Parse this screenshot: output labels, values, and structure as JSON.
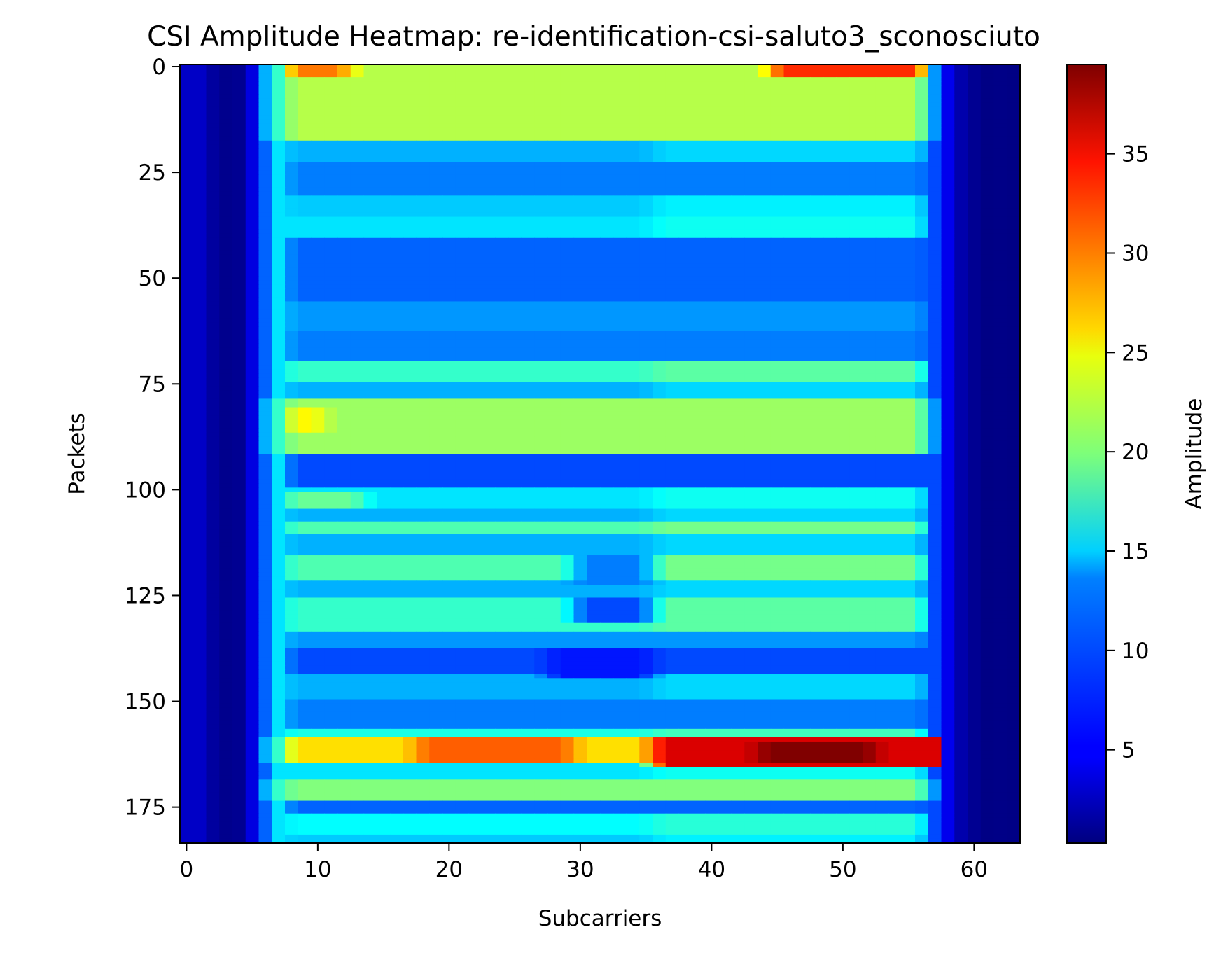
{
  "chart_data": {
    "type": "heatmap",
    "title": "CSI Amplitude Heatmap: re-identification-csi-saluto3_sconosciuto",
    "xlabel": "Subcarriers",
    "ylabel": "Packets",
    "x_range": [
      -0.5,
      63.5
    ],
    "y_range": [
      -0.5,
      183.5
    ],
    "y_inverted": true,
    "x_ticks": [
      0,
      10,
      20,
      30,
      40,
      50,
      60
    ],
    "y_ticks": [
      0,
      25,
      50,
      75,
      100,
      125,
      150,
      175
    ],
    "colormap": "jet",
    "colorbar": {
      "label": "Amplitude",
      "min": 0.3,
      "max": 39.5,
      "ticks": [
        5,
        10,
        15,
        20,
        25,
        30,
        35
      ]
    },
    "grid": false,
    "subcarrier_profile": [
      {
        "col": 0,
        "v": 3
      },
      {
        "col": 1,
        "v": 3
      },
      {
        "col": 2,
        "v": 1.5
      },
      {
        "col": 3,
        "v": 0.8
      },
      {
        "col": 4,
        "v": 1
      },
      {
        "col": 5,
        "v": 4
      },
      {
        "col": 6,
        "v": 9
      },
      {
        "col": 7,
        "v": 14
      },
      {
        "col": 57,
        "v": 8
      },
      {
        "col": 58,
        "v": 4.5
      },
      {
        "col": 59,
        "v": 2
      },
      {
        "col": 60,
        "v": 1
      },
      {
        "col": 61,
        "v": 0.5
      },
      {
        "col": 62,
        "v": 0.6
      },
      {
        "col": 63,
        "v": 0.5
      }
    ],
    "packet_bands": [
      {
        "rows": [
          0,
          2
        ],
        "value": 22
      },
      {
        "rows": [
          3,
          17
        ],
        "value": 22
      },
      {
        "rows": [
          18,
          22
        ],
        "value": 12
      },
      {
        "rows": [
          23,
          30
        ],
        "value": 10
      },
      {
        "rows": [
          31,
          35
        ],
        "value": 13
      },
      {
        "rows": [
          36,
          40
        ],
        "value": 14
      },
      {
        "rows": [
          41,
          55
        ],
        "value": 9
      },
      {
        "rows": [
          56,
          62
        ],
        "value": 11
      },
      {
        "rows": [
          63,
          69
        ],
        "value": 10
      },
      {
        "rows": [
          70,
          74
        ],
        "value": 17
      },
      {
        "rows": [
          75,
          78
        ],
        "value": 12
      },
      {
        "rows": [
          79,
          91
        ],
        "value": 21
      },
      {
        "rows": [
          92,
          99
        ],
        "value": 8
      },
      {
        "rows": [
          100,
          104
        ],
        "value": 14
      },
      {
        "rows": [
          105,
          107
        ],
        "value": 12
      },
      {
        "rows": [
          108,
          110
        ],
        "value": 18
      },
      {
        "rows": [
          111,
          115
        ],
        "value": 12
      },
      {
        "rows": [
          116,
          121
        ],
        "value": 18
      },
      {
        "rows": [
          122,
          125
        ],
        "value": 12
      },
      {
        "rows": [
          126,
          133
        ],
        "value": 17
      },
      {
        "rows": [
          134,
          137
        ],
        "value": 11
      },
      {
        "rows": [
          138,
          143
        ],
        "value": 8
      },
      {
        "rows": [
          144,
          149
        ],
        "value": 12
      },
      {
        "rows": [
          150,
          156
        ],
        "value": 10
      },
      {
        "rows": [
          157,
          158
        ],
        "value": 16
      },
      {
        "rows": [
          159,
          164
        ],
        "value": 26
      },
      {
        "rows": [
          165,
          168
        ],
        "value": 14
      },
      {
        "rows": [
          169,
          173
        ],
        "value": 20
      },
      {
        "rows": [
          174,
          176
        ],
        "value": 9
      },
      {
        "rows": [
          177,
          181
        ],
        "value": 15
      },
      {
        "rows": [
          182,
          183
        ],
        "value": 13
      }
    ],
    "hotspots": [
      {
        "col_range": [
          8,
          12
        ],
        "row_range": [
          0,
          2
        ],
        "value": 30
      },
      {
        "col_range": [
          45,
          56
        ],
        "row_range": [
          0,
          2
        ],
        "value": 33
      },
      {
        "col_range": [
          8,
          10
        ],
        "row_range": [
          81,
          86
        ],
        "value": 25
      },
      {
        "col_range": [
          8,
          13
        ],
        "row_range": [
          101,
          104
        ],
        "value": 19
      },
      {
        "col_range": [
          18,
          29
        ],
        "row_range": [
          159,
          164
        ],
        "value": 31
      },
      {
        "col_range": [
          36,
          57
        ],
        "row_range": [
          159,
          165
        ],
        "value": 36
      },
      {
        "col_range": [
          44,
          52
        ],
        "row_range": [
          160,
          164
        ],
        "value": 39.5
      },
      {
        "col_range": [
          30,
          35
        ],
        "row_range": [
          116,
          122
        ],
        "value": 10
      },
      {
        "col_range": [
          30,
          35
        ],
        "row_range": [
          126,
          131
        ],
        "value": 8
      },
      {
        "col_range": [
          28,
          35
        ],
        "row_range": [
          138,
          144
        ],
        "value": 6
      }
    ]
  }
}
